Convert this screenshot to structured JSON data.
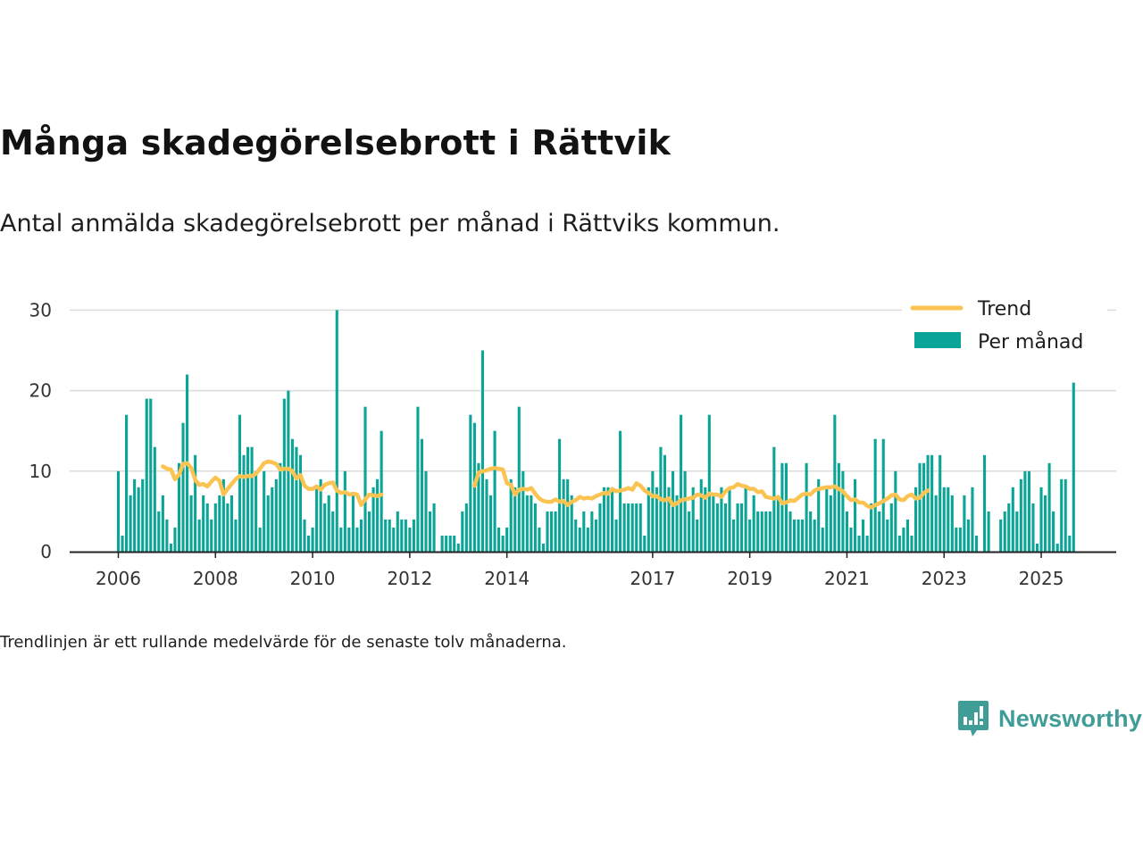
{
  "title": "Många skadegörelsebrott i Rättvik",
  "subtitle": "Antal anmälda skadegörelsebrott per månad i Rättviks kommun.",
  "note": "Trendlinjen är ett rullande medelvärde för de senaste tolv månaderna.",
  "brand": "Newsworthy",
  "colors": {
    "bar": "#0aa596",
    "trend": "#fbc452",
    "grid": "#dcdcdc",
    "axis": "#222222"
  },
  "chart_data": {
    "type": "bar",
    "start": "2006-01",
    "ylim": [
      0,
      30
    ],
    "yticks": [
      0,
      10,
      20,
      30
    ],
    "xticks": [
      "2006",
      "2008",
      "2010",
      "2012",
      "2014",
      "2017",
      "2019",
      "2021",
      "2023",
      "2025"
    ],
    "legend": {
      "position": "top-right",
      "trend_label": "Trend",
      "bar_label": "Per månad"
    },
    "series": [
      {
        "name": "Per månad",
        "values": [
          10,
          2,
          17,
          7,
          9,
          8,
          9,
          19,
          19,
          13,
          5,
          7,
          4,
          1,
          3,
          11,
          16,
          22,
          7,
          12,
          4,
          7,
          6,
          4,
          6,
          7,
          9,
          6,
          7,
          4,
          17,
          12,
          13,
          13,
          10,
          3,
          10,
          7,
          8,
          9,
          11,
          19,
          20,
          14,
          13,
          12,
          4,
          2,
          3,
          8,
          9,
          6,
          7,
          5,
          30,
          3,
          10,
          3,
          7,
          3,
          4,
          18,
          5,
          8,
          9,
          15,
          4,
          4,
          3,
          5,
          4,
          4,
          3,
          4,
          18,
          14,
          10,
          5,
          6,
          null,
          2,
          2,
          2,
          2,
          1,
          5,
          6,
          17,
          16,
          11,
          25,
          9,
          7,
          15,
          3,
          2,
          3,
          9,
          8,
          18,
          10,
          7,
          7,
          6,
          3,
          1,
          5,
          5,
          5,
          14,
          9,
          9,
          7,
          4,
          3,
          5,
          3,
          5,
          4,
          6,
          8,
          8,
          8,
          4,
          15,
          6,
          6,
          6,
          6,
          6,
          2,
          8,
          10,
          8,
          13,
          12,
          8,
          10,
          7,
          17,
          10,
          5,
          8,
          4,
          9,
          8,
          17,
          7,
          6,
          8,
          6,
          8,
          4,
          6,
          6,
          8,
          4,
          7,
          5,
          5,
          5,
          5,
          13,
          7,
          11,
          11,
          5,
          4,
          4,
          4,
          11,
          5,
          4,
          9,
          3,
          8,
          7,
          17,
          11,
          10,
          5,
          3,
          9,
          2,
          4,
          2,
          6,
          14,
          5,
          14,
          4,
          6,
          10,
          2,
          3,
          4,
          2,
          8,
          11,
          11,
          12,
          12,
          7,
          12,
          8,
          8,
          7,
          3,
          3,
          7,
          4,
          8,
          2,
          null,
          12,
          5,
          null,
          null,
          4,
          5,
          6,
          8,
          5,
          9,
          10,
          10,
          6,
          1,
          8,
          7,
          11,
          5,
          1,
          9,
          9,
          2,
          21
        ]
      },
      {
        "name": "Trend",
        "values": [
          null,
          null,
          null,
          null,
          null,
          null,
          null,
          null,
          null,
          null,
          null,
          10.6,
          10.3,
          10.2,
          9,
          9.6,
          10.9,
          11,
          10.4,
          8.9,
          8.3,
          8.4,
          8.1,
          8.7,
          9.2,
          8.8,
          7.1,
          7.8,
          8.4,
          9,
          9.4,
          9.3,
          9.4,
          9.4,
          9.7,
          10.3,
          11,
          11.2,
          11.1,
          10.9,
          10.2,
          10.3,
          10.3,
          10,
          9.1,
          9.5,
          8.2,
          7.8,
          7.8,
          8.1,
          7.7,
          8.3,
          8.5,
          8.6,
          7.6,
          7.3,
          7.4,
          7.1,
          7.2,
          7.1,
          5.8,
          6.5,
          7.1,
          7,
          6.9,
          7.1,
          null,
          null,
          null,
          null,
          null,
          null,
          null,
          null,
          null,
          null,
          null,
          null,
          null,
          null,
          null,
          null,
          null,
          null,
          null,
          null,
          null,
          null,
          8.2,
          9.8,
          10,
          10.1,
          10.3,
          10.4,
          10.3,
          10.2,
          8.5,
          8.3,
          7.1,
          7.7,
          7.8,
          7.7,
          7.9,
          7.2,
          6.6,
          6.3,
          6.2,
          6.2,
          6.5,
          6.2,
          6.3,
          5.8,
          6.2,
          6.4,
          6.8,
          6.6,
          6.7,
          6.6,
          6.9,
          7.1,
          7.3,
          7.2,
          7.8,
          7.5,
          7.6,
          7.7,
          7.9,
          7.7,
          8.5,
          8.2,
          7.6,
          7.3,
          6.9,
          6.9,
          6.5,
          6.4,
          6.6,
          5.8,
          6,
          6.4,
          6.5,
          6.6,
          6.7,
          7.1,
          7,
          6.7,
          7.2,
          7.1,
          7.1,
          6.8,
          7.5,
          7.9,
          8,
          8.4,
          8.2,
          8.1,
          7.8,
          7.8,
          7.4,
          7.5,
          6.8,
          6.7,
          6.6,
          6.8,
          6,
          6.1,
          6.4,
          6.3,
          6.7,
          7.1,
          7.2,
          7.1,
          7.6,
          7.8,
          7.9,
          8,
          8,
          8.1,
          7.8,
          7.5,
          6.9,
          6.4,
          6.5,
          6.1,
          6.1,
          5.7,
          5.5,
          5.8,
          6,
          6.3,
          6.6,
          7,
          7.1,
          6.5,
          6.4,
          6.9,
          7.1,
          6.6,
          6.7,
          7.3,
          7.6
        ]
      }
    ]
  }
}
